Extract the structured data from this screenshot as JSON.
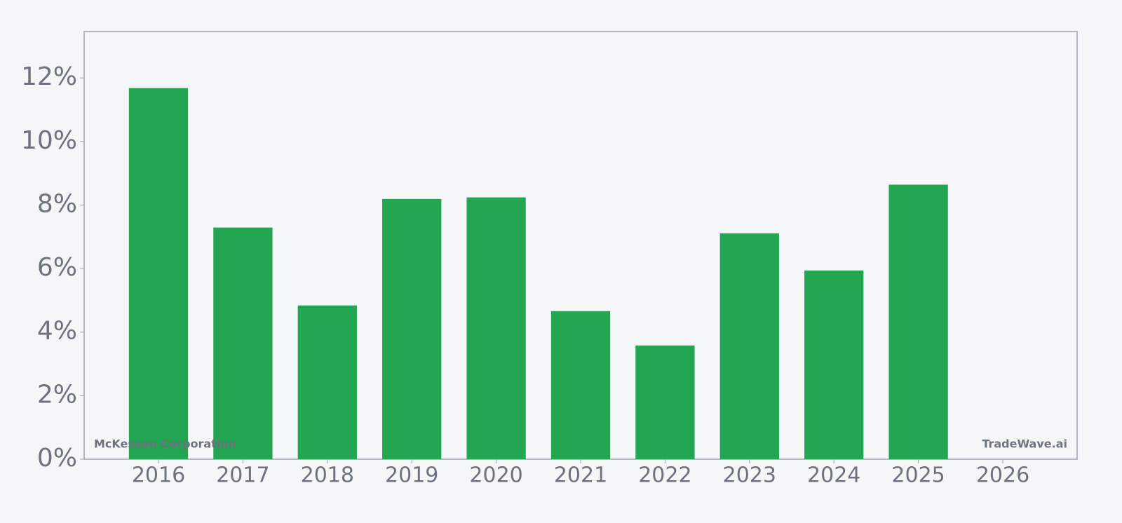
{
  "chart_data": {
    "type": "bar",
    "categories": [
      "2016",
      "2017",
      "2018",
      "2019",
      "2020",
      "2021",
      "2022",
      "2023",
      "2024",
      "2025",
      "2026"
    ],
    "values": [
      11.68,
      7.29,
      4.84,
      8.19,
      8.24,
      4.66,
      3.58,
      7.11,
      5.94,
      8.64,
      null
    ],
    "color": "#22a652",
    "ylim": [
      0,
      13.46
    ],
    "yticks": [
      {
        "value": 0,
        "label": "0%"
      },
      {
        "value": 2,
        "label": "2%"
      },
      {
        "value": 4,
        "label": "4%"
      },
      {
        "value": 6,
        "label": "6%"
      },
      {
        "value": 8,
        "label": "8%"
      },
      {
        "value": 10,
        "label": "10%"
      },
      {
        "value": 12,
        "label": "12%"
      }
    ],
    "watermark_left": "McKesson Corporation",
    "watermark_right": "TradeWave.ai"
  }
}
